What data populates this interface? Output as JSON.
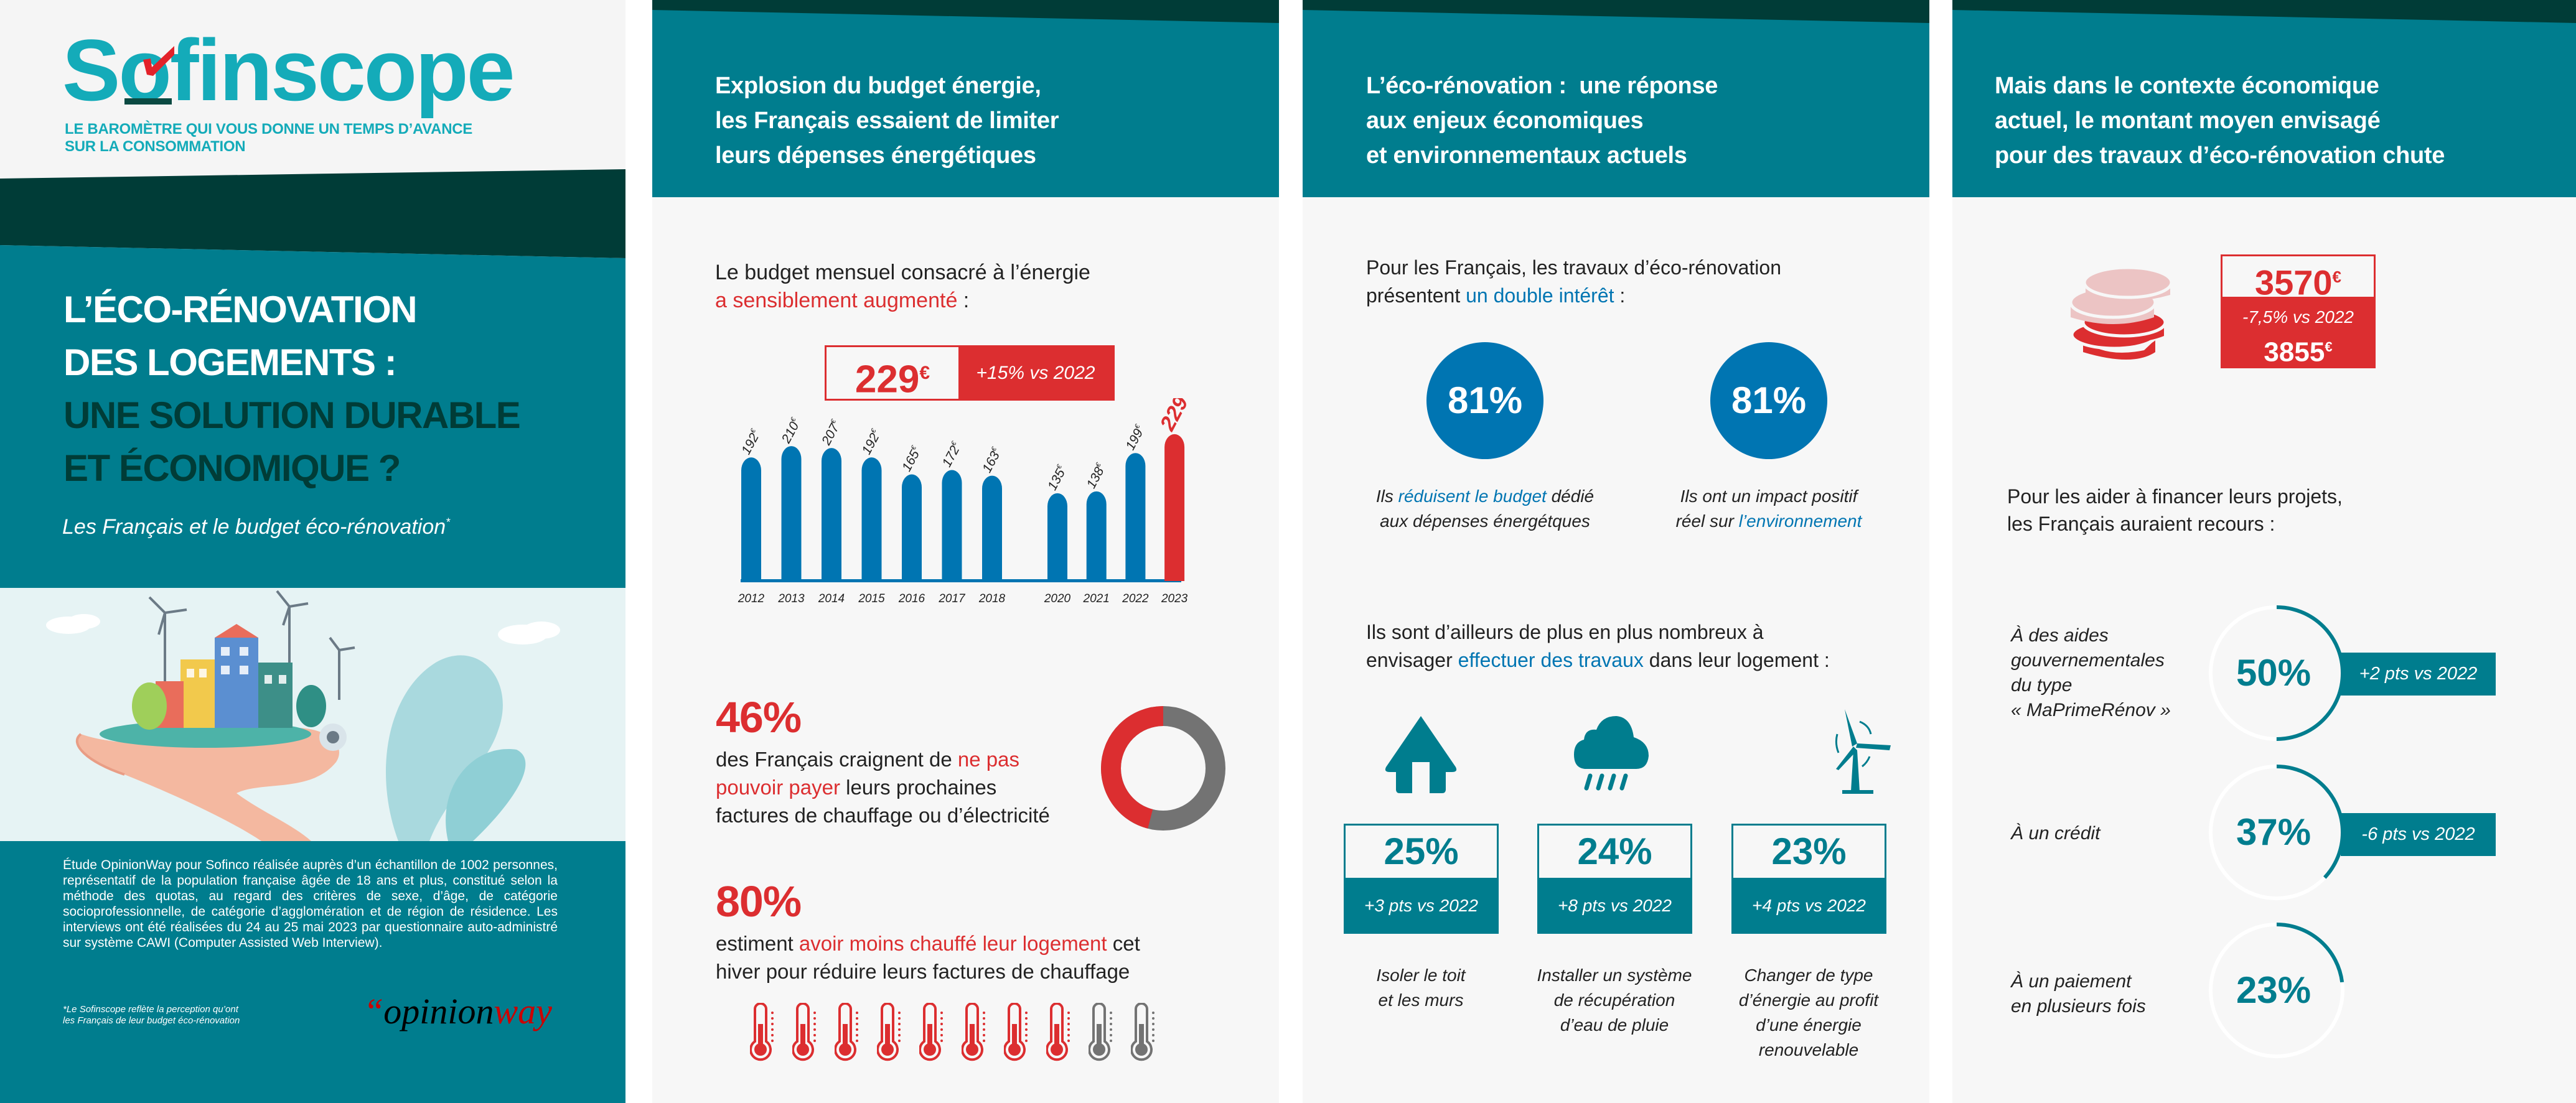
{
  "colors": {
    "teal": "#007d8e",
    "dark_green": "#003c37",
    "red": "#dc2e30",
    "blue": "#0075b2",
    "logo_teal": "#14abb9",
    "gray": "#737373",
    "light_red": "#ecc4c4"
  },
  "cover": {
    "logo": "Sofinscope",
    "tagline_1": "LE BAROMÈTRE QUI VOUS DONNE UN TEMPS D’AVANCE",
    "tagline_2": "SUR LA CONSOMMATION",
    "title_white": [
      "L’ÉCO-RÉNOVATION",
      "DES LOGEMENTS :"
    ],
    "title_dark": [
      "UNE SOLUTION DURABLE",
      "ET ÉCONOMIQUE ?"
    ],
    "subtitle": "Les Français et le budget éco-rénovation",
    "subtitle_mark": "*",
    "methodology": "Étude OpinionWay pour Sofinco réalisée auprès d’un échantillon de 1002 personnes, représentatif de la population française âgée de 18 ans et plus, constitué selon la méthode des quotas, au regard des critères de sexe, d’âge, de catégorie socioprofessionnelle, de catégorie d’agglomération et de région de résidence. Les interviews ont été réalisées du 24 au 25 mai 2023 par questionnaire auto-administré sur système CAWI (Computer Assisted Web Interview).",
    "footnote_1": "*Le Sofinscope reflète la perception qu’ont",
    "footnote_2": "les Français de leur budget éco-rénovation",
    "partner_logo_quote": "“",
    "partner_logo_1": "opinion",
    "partner_logo_2": "way"
  },
  "panel2": {
    "title": [
      "Explosion du budget énergie,",
      "les Français essaient de limiter",
      "leurs dépenses énergétiques"
    ],
    "intro_1": "Le budget mensuel consacré à l’énergie",
    "intro_2_highlight": "a sensiblement augmenté",
    "intro_2_post": " :",
    "headline_value": "229",
    "headline_unit": "€",
    "headline_delta": "+15% vs 2022",
    "stat1": {
      "value": "46%",
      "pct": 46,
      "l1_pre": "des Français craignent de ",
      "l1_hl": "ne pas",
      "l2_hl": "pouvoir payer",
      "l2_post": " leurs prochaines",
      "l3": "factures de chauffage ou d’électricité"
    },
    "stat2": {
      "value": "80%",
      "l1_pre": "estiment ",
      "l1_hl": "avoir moins chauffé leur logement",
      "l1_post": " cet",
      "l2": "hiver pour réduire leurs factures de chauffage",
      "thermometers_total": 10,
      "thermometers_filled": 8
    }
  },
  "chart_data": {
    "type": "bar",
    "title": "",
    "unit": "€",
    "categories": [
      "2012",
      "2013",
      "2014",
      "2015",
      "2016",
      "2017",
      "2018",
      "2020",
      "2021",
      "2022",
      "2023"
    ],
    "values": [
      192,
      210,
      207,
      192,
      165,
      172,
      163,
      135,
      138,
      199,
      229
    ],
    "highlight_category": "2023",
    "bar_color": "#0075b2",
    "highlight_color": "#dc2e30",
    "ylim": [
      0,
      240
    ],
    "grid": false,
    "xlabel": "",
    "ylabel": ""
  },
  "panel3": {
    "title": [
      "L’éco-rénovation :  une réponse",
      "aux enjeux économiques",
      "et environnementaux actuels"
    ],
    "intro_1": "Pour les Français, les travaux d’éco-rénovation",
    "intro_2_pre": "présentent ",
    "intro_2_hl": "un double intérêt",
    "intro_2_post": " :",
    "circles": [
      {
        "value": "81%",
        "l1_pre": "Ils ",
        "l1_hl": "réduisent le budget",
        "l1_post": " dédié",
        "l2_pre": "aux dépenses énergétques",
        "l2_hl": ""
      },
      {
        "value": "81%",
        "l1_pre": "Ils ont un impact positif",
        "l1_hl": "",
        "l1_post": "",
        "l2_pre": "réel sur ",
        "l2_hl": "l’environnement"
      }
    ],
    "works_1": "Ils sont d’ailleurs de plus en plus nombreux à",
    "works_2_pre": "envisager ",
    "works_2_hl": "effectuer des travaux",
    "works_2_post": " dans leur logement :",
    "works": [
      {
        "icon": "house-icon",
        "value": "25%",
        "delta": "+3 pts vs 2022",
        "label": [
          "Isoler le toit",
          "et les murs"
        ]
      },
      {
        "icon": "cloud-rain-icon",
        "value": "24%",
        "delta": "+8 pts vs 2022",
        "label": [
          "Installer un système",
          "de récupération",
          "d’eau de pluie"
        ]
      },
      {
        "icon": "wind-turbine-icon",
        "value": "23%",
        "delta": "+4 pts vs 2022",
        "label": [
          "Changer de type",
          "d’énergie au profit",
          "d’une énergie",
          "renouvelable"
        ]
      }
    ]
  },
  "panel4": {
    "title": [
      "Mais dans le contexte économique",
      "actuel, le montant moyen envisagé",
      "pour des travaux d’éco-rénovation chute"
    ],
    "amount_value": "3570",
    "amount_unit": "€",
    "amount_delta": "-7,5% vs 2022",
    "previous_value": "3855",
    "previous_unit": "€",
    "intro_1": "Pour les aider à financer leurs projets,",
    "intro_2": "les Français auraient recours :",
    "items": [
      {
        "label": [
          "À des aides",
          "gouvernementales",
          "du type",
          "« MaPrimeRénov »"
        ],
        "value": "50%",
        "pct": 50,
        "delta": "+2 pts vs 2022"
      },
      {
        "label": [
          "À un crédit"
        ],
        "value": "37%",
        "pct": 37,
        "delta": "-6 pts vs 2022"
      },
      {
        "label": [
          "À un paiement",
          "en plusieurs fois"
        ],
        "value": "23%",
        "pct": 23,
        "delta": ""
      }
    ]
  }
}
